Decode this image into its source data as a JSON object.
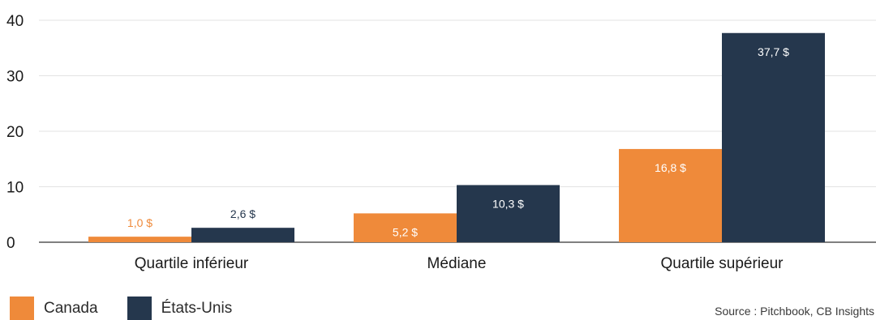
{
  "chart_data": {
    "type": "bar",
    "categories": [
      "Quartile inférieur",
      "Médiane",
      "Quartile supérieur"
    ],
    "series": [
      {
        "name": "Canada",
        "values": [
          1.0,
          5.2,
          16.8
        ],
        "labels": [
          "1,0 $",
          "5,2 $",
          "16,8 $"
        ],
        "color": "#ef8a3a"
      },
      {
        "name": "États-Unis",
        "values": [
          2.6,
          10.3,
          37.7
        ],
        "labels": [
          "2,6 $",
          "10,3 $",
          "37,7 $"
        ],
        "color": "#25374d"
      }
    ],
    "y_ticks": [
      "0",
      "10",
      "20",
      "30",
      "40"
    ],
    "ylim": [
      0,
      40
    ],
    "grid": true,
    "legend_position": "bottom-left"
  },
  "legend": {
    "canada": "Canada",
    "us": "États-Unis"
  },
  "source": "Source : Pitchbook, CB Insights"
}
